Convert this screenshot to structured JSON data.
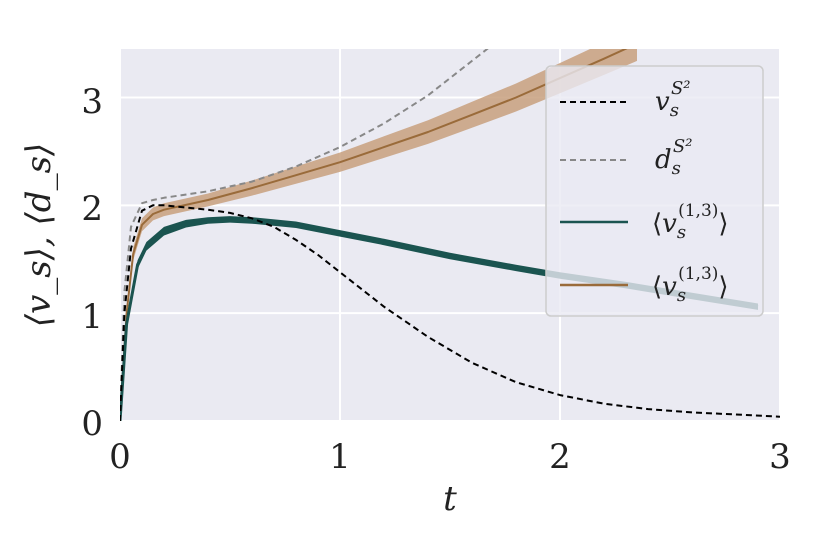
{
  "chart_data": {
    "type": "line",
    "xlabel": "t",
    "ylabel": "⟨v_s⟩, ⟨d_s⟩",
    "xlim": [
      0,
      3
    ],
    "ylim": [
      0,
      3.45
    ],
    "xticks": [
      0,
      1,
      2,
      3
    ],
    "yticks": [
      0,
      1,
      2,
      3
    ],
    "grid": true,
    "legend_position": "top-right",
    "colors": {
      "plot_bg": "#eaeaf2",
      "grid": "#ffffff",
      "v_s2": "#000000",
      "d_s2": "#888888",
      "v_teal": "#1b5450",
      "v_brown": "#9a6b3a",
      "band_brown": "#c8a07e"
    },
    "series": [
      {
        "name": "v_s^{S^2}",
        "style": "dashed",
        "x": [
          0,
          0.02,
          0.05,
          0.1,
          0.15,
          0.2,
          0.3,
          0.4,
          0.5,
          0.6,
          0.7,
          0.8,
          0.9,
          1.0,
          1.2,
          1.4,
          1.6,
          1.8,
          2.0,
          2.2,
          2.4,
          2.6,
          2.8,
          3.0
        ],
        "y": [
          0,
          1.0,
          1.6,
          1.95,
          2.0,
          2.0,
          1.98,
          1.96,
          1.93,
          1.88,
          1.8,
          1.68,
          1.54,
          1.38,
          1.06,
          0.78,
          0.54,
          0.36,
          0.24,
          0.16,
          0.11,
          0.08,
          0.06,
          0.04
        ]
      },
      {
        "name": "d_s^{S^2}",
        "style": "dashed",
        "x": [
          0,
          0.02,
          0.05,
          0.1,
          0.15,
          0.2,
          0.4,
          0.6,
          0.8,
          1.0,
          1.2,
          1.4,
          1.6,
          1.7
        ],
        "y": [
          0,
          1.2,
          1.8,
          2.02,
          2.05,
          2.07,
          2.13,
          2.22,
          2.36,
          2.54,
          2.76,
          3.02,
          3.34,
          3.5
        ]
      },
      {
        "name": "⟨v_s^{(1,3)}⟩",
        "style": "solid",
        "x": [
          0,
          0.03,
          0.08,
          0.12,
          0.2,
          0.3,
          0.4,
          0.5,
          0.6,
          0.8,
          1.0,
          1.2,
          1.5,
          1.8,
          2.0,
          2.3,
          2.6,
          2.9
        ],
        "y": [
          0,
          0.9,
          1.45,
          1.62,
          1.76,
          1.83,
          1.86,
          1.87,
          1.86,
          1.82,
          1.74,
          1.66,
          1.53,
          1.42,
          1.35,
          1.26,
          1.16,
          1.06
        ],
        "spread": [
          0,
          0.03,
          0.04,
          0.04,
          0.04,
          0.035,
          0.03,
          0.03,
          0.03,
          0.03,
          0.03,
          0.03,
          0.03,
          0.03,
          0.03,
          0.03,
          0.03,
          0.03
        ]
      },
      {
        "name": "⟨v_s^{(1,3)}⟩",
        "style": "solid",
        "x": [
          0,
          0.03,
          0.06,
          0.1,
          0.15,
          0.2,
          0.4,
          0.6,
          0.8,
          1.0,
          1.2,
          1.4,
          1.6,
          1.8,
          2.0,
          2.2,
          2.35
        ],
        "y": [
          0,
          1.0,
          1.55,
          1.82,
          1.92,
          1.96,
          2.05,
          2.16,
          2.28,
          2.4,
          2.54,
          2.68,
          2.84,
          3.0,
          3.18,
          3.36,
          3.5
        ],
        "spread": [
          0,
          0.05,
          0.06,
          0.06,
          0.06,
          0.06,
          0.06,
          0.07,
          0.08,
          0.09,
          0.1,
          0.11,
          0.12,
          0.13,
          0.14,
          0.15,
          0.16
        ]
      }
    ]
  },
  "legend": {
    "label_1_base": "v",
    "label_1_sub": "s",
    "label_1_sup": "S²",
    "label_2_base": "d",
    "label_2_sub": "s",
    "label_2_sup": "S²",
    "label_3_open": "⟨",
    "label_3_base": "v",
    "label_3_sub": "s",
    "label_3_sup": "(1,3)",
    "label_3_close": "⟩",
    "label_4_open": "⟨",
    "label_4_base": "v",
    "label_4_sub": "s",
    "label_4_sup": "(1,3)",
    "label_4_close": "⟩"
  },
  "axes": {
    "x_ticks": [
      "0",
      "1",
      "2",
      "3"
    ],
    "y_ticks": [
      "0",
      "1",
      "2",
      "3"
    ],
    "xlabel": "t",
    "ylabel": "⟨v_s⟩, ⟨d_s⟩"
  }
}
